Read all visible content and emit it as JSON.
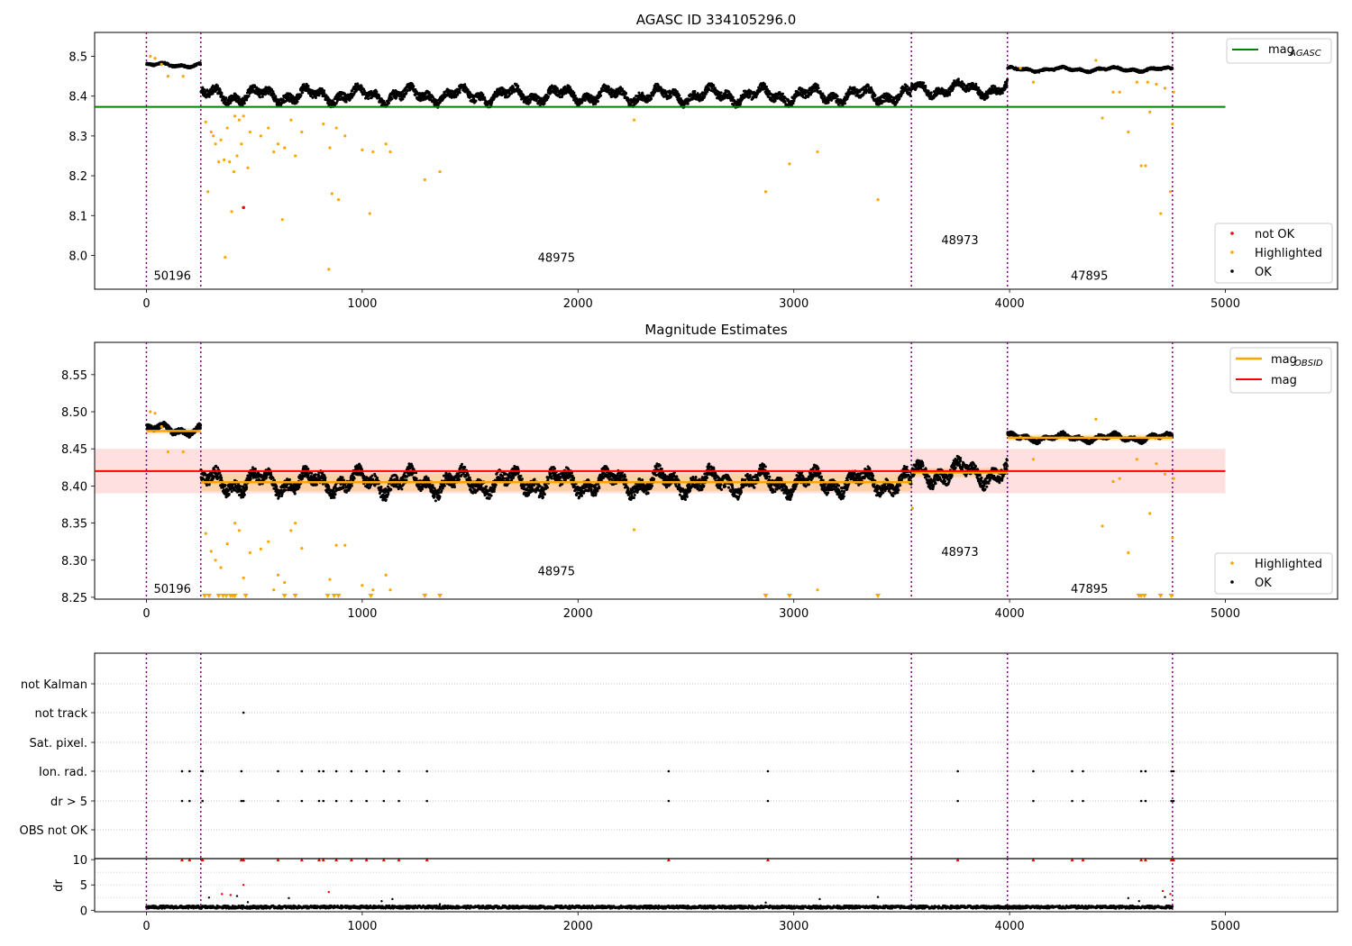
{
  "chart_data": [
    {
      "type": "scatter",
      "title": "AGASC ID 334105296.0",
      "xlim": [
        -240,
        5520
      ],
      "ylim": [
        7.915,
        8.56
      ],
      "xticks": [
        0,
        1000,
        2000,
        3000,
        4000,
        5000
      ],
      "yticks": [
        8.0,
        8.1,
        8.2,
        8.3,
        8.4,
        8.5
      ],
      "ytick_labels": [
        "8.0",
        "8.1",
        "8.2",
        "8.3",
        "8.4",
        "8.5"
      ],
      "obs_boundaries": [
        0,
        252,
        3545,
        3990,
        4755
      ],
      "obs_labels": [
        {
          "text": "50196",
          "x": 120,
          "y": 7.95
        },
        {
          "text": "48975",
          "x": 1900,
          "y": 7.995
        },
        {
          "text": "48973",
          "x": 3770,
          "y": 8.04
        },
        {
          "text": "47895",
          "x": 4370,
          "y": 7.95
        }
      ],
      "segments": [
        {
          "x0": 0,
          "x1": 252,
          "base": 8.478,
          "amp": 0.006
        },
        {
          "x0": 252,
          "x1": 3545,
          "base": 8.402,
          "amp": 0.022
        },
        {
          "x0": 3545,
          "x1": 3990,
          "base": 8.418,
          "amp": 0.02
        },
        {
          "x0": 3990,
          "x1": 4755,
          "base": 8.467,
          "amp": 0.006
        }
      ],
      "hlines": [
        {
          "name": "mag_AGASC",
          "y": 8.373,
          "x0": -240,
          "x1": 5000,
          "color": "#008000"
        }
      ],
      "highlighted": [
        [
          18,
          8.5
        ],
        [
          40,
          8.495
        ],
        [
          70,
          8.48
        ],
        [
          100,
          8.45
        ],
        [
          170,
          8.45
        ],
        [
          275,
          8.335
        ],
        [
          285,
          8.16
        ],
        [
          300,
          8.31
        ],
        [
          310,
          8.3
        ],
        [
          320,
          8.28
        ],
        [
          335,
          8.235
        ],
        [
          345,
          8.29
        ],
        [
          360,
          8.24
        ],
        [
          365,
          7.995
        ],
        [
          375,
          8.32
        ],
        [
          385,
          8.235
        ],
        [
          395,
          8.11
        ],
        [
          405,
          8.21
        ],
        [
          410,
          8.35
        ],
        [
          420,
          8.25
        ],
        [
          430,
          8.34
        ],
        [
          440,
          8.28
        ],
        [
          450,
          8.35
        ],
        [
          470,
          8.22
        ],
        [
          480,
          8.31
        ],
        [
          530,
          8.3
        ],
        [
          565,
          8.32
        ],
        [
          590,
          8.26
        ],
        [
          610,
          8.28
        ],
        [
          630,
          8.09
        ],
        [
          640,
          8.27
        ],
        [
          670,
          8.34
        ],
        [
          690,
          8.25
        ],
        [
          720,
          8.31
        ],
        [
          820,
          8.33
        ],
        [
          845,
          7.965
        ],
        [
          850,
          8.27
        ],
        [
          860,
          8.155
        ],
        [
          880,
          8.32
        ],
        [
          890,
          8.14
        ],
        [
          920,
          8.3
        ],
        [
          1000,
          8.265
        ],
        [
          1035,
          8.105
        ],
        [
          1050,
          8.26
        ],
        [
          1110,
          8.28
        ],
        [
          1130,
          8.26
        ],
        [
          1290,
          8.19
        ],
        [
          1360,
          8.21
        ],
        [
          2260,
          8.34
        ],
        [
          2870,
          8.16
        ],
        [
          2980,
          8.23
        ],
        [
          3110,
          8.26
        ],
        [
          3390,
          8.14
        ],
        [
          4050,
          8.47
        ],
        [
          4110,
          8.435
        ],
        [
          4400,
          8.49
        ],
        [
          4430,
          8.345
        ],
        [
          4480,
          8.41
        ],
        [
          4510,
          8.41
        ],
        [
          4550,
          8.31
        ],
        [
          4590,
          8.435
        ],
        [
          4610,
          8.225
        ],
        [
          4630,
          8.225
        ],
        [
          4640,
          8.435
        ],
        [
          4650,
          8.36
        ],
        [
          4680,
          8.43
        ],
        [
          4700,
          8.105
        ],
        [
          4720,
          8.42
        ],
        [
          4745,
          8.16
        ],
        [
          4755,
          8.33
        ],
        [
          4760,
          8.41
        ]
      ],
      "not_ok": [
        [
          450,
          8.12
        ]
      ],
      "legend_top": {
        "position": "top-right",
        "entries": [
          {
            "label": "mag",
            "sub": "AGASC",
            "color": "#008000"
          }
        ]
      },
      "legend_bottom": {
        "position": "lower-right",
        "entries": [
          {
            "label": "not OK",
            "color": "#ff0000"
          },
          {
            "label": "Highlighted",
            "color": "#ffa500"
          },
          {
            "label": "OK",
            "color": "#000000"
          }
        ]
      }
    },
    {
      "type": "scatter",
      "title": "Magnitude Estimates",
      "xlim": [
        -240,
        5520
      ],
      "ylim": [
        8.2475,
        8.5935
      ],
      "xticks": [
        0,
        1000,
        2000,
        3000,
        4000,
        5000
      ],
      "yticks": [
        8.25,
        8.3,
        8.35,
        8.4,
        8.45,
        8.5,
        8.55
      ],
      "ytick_labels": [
        "8.25",
        "8.30",
        "8.35",
        "8.40",
        "8.45",
        "8.50",
        "8.55"
      ],
      "obs_boundaries": [
        0,
        252,
        3545,
        3990,
        4755
      ],
      "obs_labels": [
        {
          "text": "50196",
          "x": 120,
          "y": 8.262
        },
        {
          "text": "48975",
          "x": 1900,
          "y": 8.286
        },
        {
          "text": "48973",
          "x": 3770,
          "y": 8.312
        },
        {
          "text": "47895",
          "x": 4370,
          "y": 8.262
        }
      ],
      "segments": [
        {
          "x0": 0,
          "x1": 252,
          "base": 8.476,
          "amp": 0.008
        },
        {
          "x0": 252,
          "x1": 3545,
          "base": 8.405,
          "amp": 0.018
        },
        {
          "x0": 3545,
          "x1": 3990,
          "base": 8.418,
          "amp": 0.018
        },
        {
          "x0": 3990,
          "x1": 4755,
          "base": 8.465,
          "amp": 0.006
        }
      ],
      "mag_obsid": [
        {
          "x0": 0,
          "x1": 252,
          "y": 8.474,
          "band": 0.004
        },
        {
          "x0": 252,
          "x1": 3545,
          "y": 8.405,
          "band": 0.012
        },
        {
          "x0": 3545,
          "x1": 3990,
          "y": 8.418,
          "band": 0.006
        },
        {
          "x0": 3990,
          "x1": 4755,
          "y": 8.465,
          "band": 0.004
        }
      ],
      "mag": {
        "y": 8.42,
        "x0": -240,
        "x1": 5000,
        "band": [
          8.39,
          8.45
        ],
        "color": "#ff0000"
      },
      "highlighted": [
        [
          18,
          8.5
        ],
        [
          40,
          8.498
        ],
        [
          70,
          8.48
        ],
        [
          100,
          8.446
        ],
        [
          170,
          8.446
        ],
        [
          275,
          8.336
        ],
        [
          300,
          8.312
        ],
        [
          320,
          8.3
        ],
        [
          345,
          8.29
        ],
        [
          375,
          8.322
        ],
        [
          410,
          8.35
        ],
        [
          430,
          8.34
        ],
        [
          450,
          8.276
        ],
        [
          480,
          8.31
        ],
        [
          530,
          8.315
        ],
        [
          565,
          8.325
        ],
        [
          590,
          8.26
        ],
        [
          610,
          8.28
        ],
        [
          640,
          8.27
        ],
        [
          670,
          8.34
        ],
        [
          690,
          8.35
        ],
        [
          720,
          8.316
        ],
        [
          850,
          8.274
        ],
        [
          880,
          8.32
        ],
        [
          920,
          8.32
        ],
        [
          1000,
          8.266
        ],
        [
          1050,
          8.26
        ],
        [
          1110,
          8.28
        ],
        [
          1130,
          8.26
        ],
        [
          2260,
          8.341
        ],
        [
          3110,
          8.26
        ],
        [
          3550,
          8.37
        ],
        [
          4050,
          8.466
        ],
        [
          4110,
          8.436
        ],
        [
          4400,
          8.49
        ],
        [
          4430,
          8.346
        ],
        [
          4480,
          8.406
        ],
        [
          4510,
          8.41
        ],
        [
          4550,
          8.31
        ],
        [
          4590,
          8.436
        ],
        [
          4650,
          8.363
        ],
        [
          4680,
          8.43
        ],
        [
          4720,
          8.416
        ],
        [
          4755,
          8.33
        ],
        [
          4760,
          8.41
        ]
      ],
      "below_range": [
        270,
        290,
        335,
        355,
        370,
        390,
        400,
        410,
        460,
        640,
        690,
        840,
        870,
        890,
        1040,
        1290,
        1360,
        2870,
        2980,
        3390,
        4600,
        4610,
        4625,
        4700,
        4750
      ],
      "legend_top": {
        "position": "top-right",
        "entries": [
          {
            "label": "mag",
            "sub": "OBSID",
            "color": "#ffa500"
          },
          {
            "label": "mag",
            "sub": "",
            "color": "#ff0000"
          }
        ]
      },
      "legend_bottom": {
        "position": "lower-right",
        "entries": [
          {
            "label": "Highlighted",
            "color": "#ffa500"
          },
          {
            "label": "OK",
            "color": "#000000"
          }
        ]
      }
    },
    {
      "type": "scatter",
      "title": "",
      "xlim": [
        -240,
        5520
      ],
      "xticks": [
        0,
        1000,
        2000,
        3000,
        4000,
        5000
      ],
      "obs_boundaries": [
        0,
        252,
        3545,
        3990,
        4755
      ],
      "flag_rows": [
        "not Kalman",
        "not track",
        "Sat. pixel.",
        "Ion. rad.",
        "dr > 5",
        "OBS not OK"
      ],
      "flag_points": {
        "not track": [
          450
        ],
        "Ion. rad.": [
          165,
          200,
          260,
          440,
          610,
          720,
          800,
          820,
          880,
          950,
          1020,
          1100,
          1170,
          1300,
          2420,
          2880,
          3760,
          4110,
          4290,
          4340,
          4610,
          4630,
          4750,
          4760
        ],
        "dr > 5": [
          165,
          200,
          260,
          440,
          450,
          610,
          720,
          800,
          820,
          880,
          950,
          1020,
          1100,
          1170,
          1300,
          2420,
          2880,
          3760,
          4110,
          4290,
          4340,
          4610,
          4630,
          4750,
          4760
        ]
      }
    },
    {
      "type": "scatter",
      "title": "",
      "ylabel": "dr",
      "xlim": [
        -240,
        5520
      ],
      "ylim": [
        -0.3,
        10.2
      ],
      "xticks": [
        0,
        1000,
        2000,
        3000,
        4000,
        5000
      ],
      "yticks": [
        0,
        5,
        10
      ],
      "ytick_labels": [
        "0",
        "5",
        "10"
      ],
      "obs_boundaries": [
        0,
        252,
        3545,
        3990,
        4755
      ],
      "capped_points": [
        165,
        200,
        260,
        440,
        450,
        610,
        720,
        800,
        820,
        880,
        950,
        1020,
        1100,
        1170,
        1300,
        2420,
        2880,
        3760,
        4110,
        4290,
        4340,
        4610,
        4630,
        4750,
        4760
      ],
      "red_points": [
        [
          350,
          3.2
        ],
        [
          390,
          3.0
        ],
        [
          450,
          5.0
        ],
        [
          845,
          3.6
        ],
        [
          4710,
          3.8
        ],
        [
          4745,
          3.2
        ]
      ],
      "scattered_points": [
        [
          290,
          2.5
        ],
        [
          420,
          2.8
        ],
        [
          470,
          1.6
        ],
        [
          660,
          2.4
        ],
        [
          1090,
          1.8
        ],
        [
          1140,
          2.2
        ],
        [
          1360,
          1.2
        ],
        [
          2870,
          1.5
        ],
        [
          3120,
          2.2
        ],
        [
          3390,
          2.6
        ],
        [
          4550,
          2.4
        ],
        [
          4600,
          1.8
        ],
        [
          4720,
          2.6
        ]
      ]
    }
  ]
}
